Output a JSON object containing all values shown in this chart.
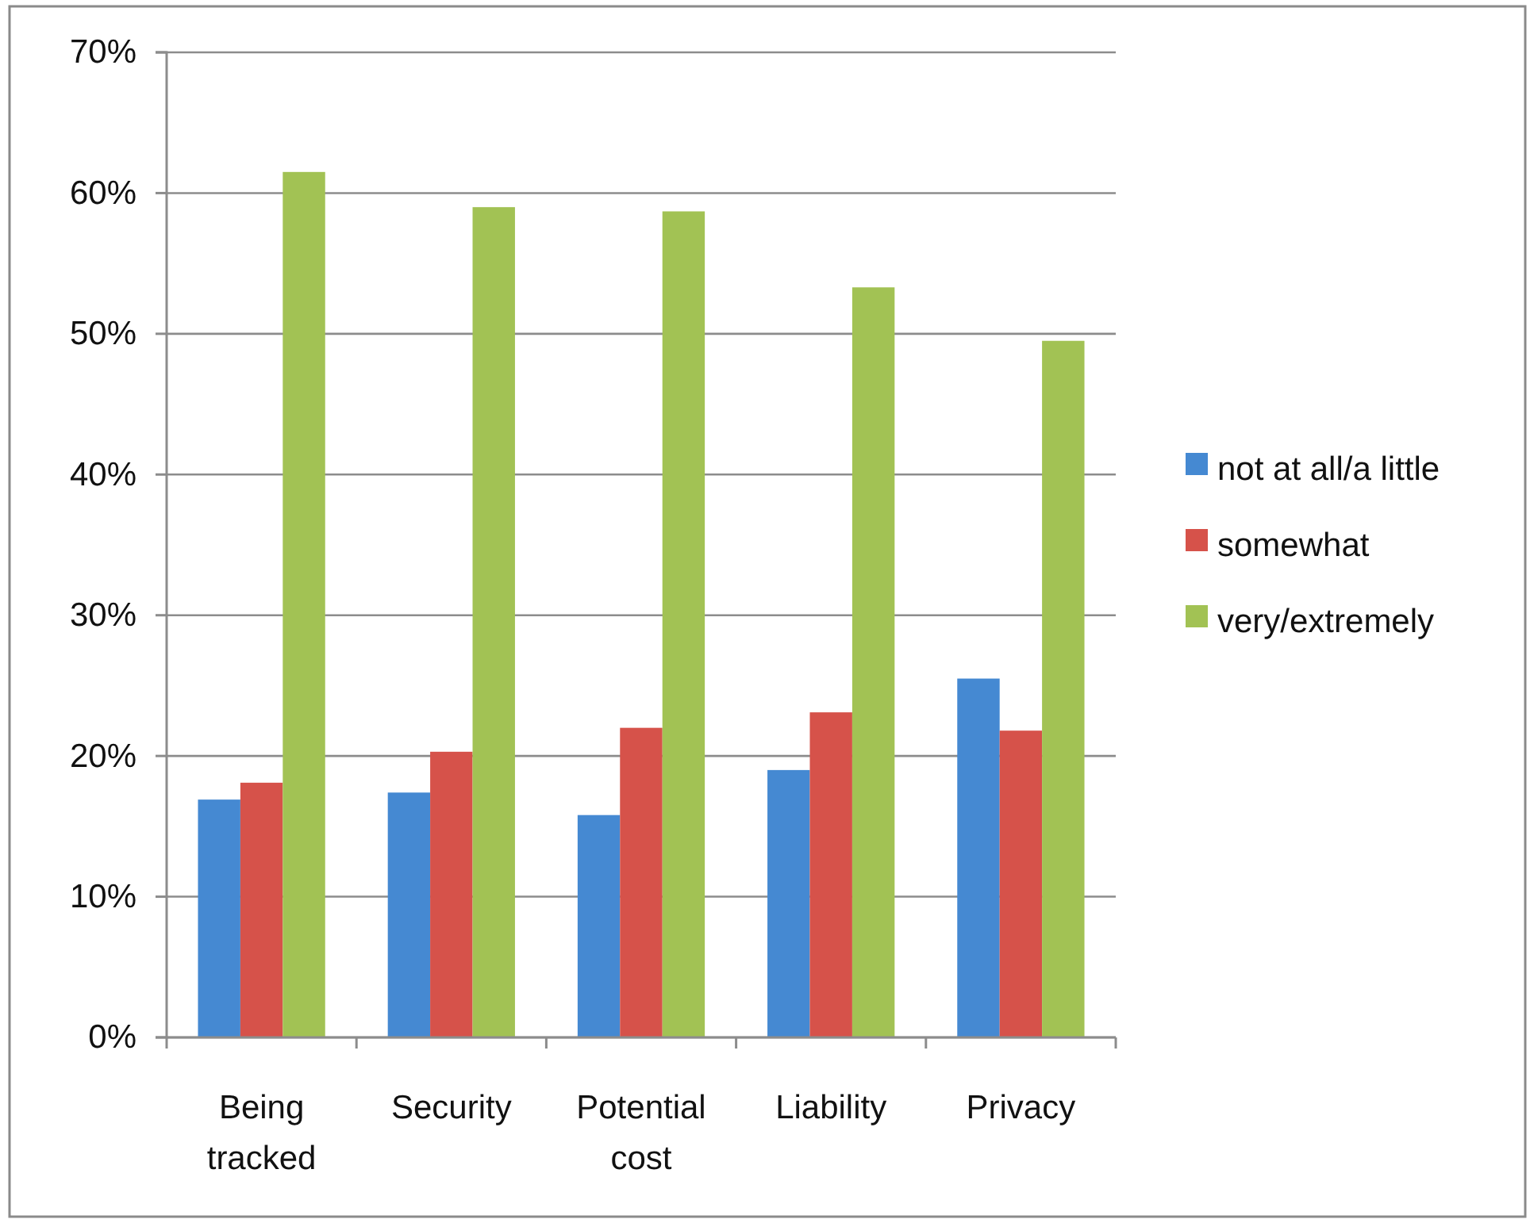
{
  "chart_data": {
    "type": "bar",
    "categories": [
      "Being tracked",
      "Security",
      "Potential cost",
      "Liability",
      "Privacy"
    ],
    "series": [
      {
        "name": "not at all/a little",
        "color": "#4589d2",
        "values": [
          16.9,
          17.4,
          15.8,
          19.0,
          25.5
        ]
      },
      {
        "name": "somewhat",
        "color": "#d6524a",
        "values": [
          18.1,
          20.3,
          22.0,
          23.1,
          21.8
        ]
      },
      {
        "name": "very/extremely",
        "color": "#a2c254",
        "values": [
          61.5,
          59.0,
          58.7,
          53.3,
          49.5
        ]
      }
    ],
    "ylim": [
      0,
      70
    ],
    "yticks": [
      {
        "value": 0,
        "label": "0%"
      },
      {
        "value": 10,
        "label": "10%"
      },
      {
        "value": 20,
        "label": "20%"
      },
      {
        "value": 30,
        "label": "30%"
      },
      {
        "value": 40,
        "label": "40%"
      },
      {
        "value": 50,
        "label": "50%"
      },
      {
        "value": 60,
        "label": "60%"
      },
      {
        "value": 70,
        "label": "70%"
      }
    ],
    "grid": "y",
    "legend": "right"
  }
}
